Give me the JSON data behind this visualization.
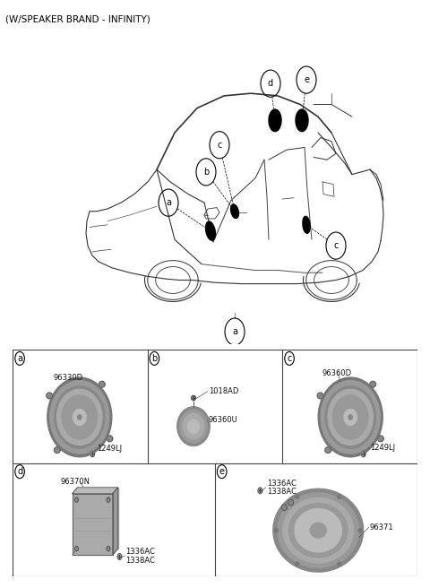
{
  "title": "(W/SPEAKER BRAND - INFINITY)",
  "title_fontsize": 7.5,
  "bg_color": "#ffffff",
  "label_fontsize": 6.0,
  "grid_color": "#444444",
  "line_color": "#333333",
  "speaker_dark": "#888888",
  "speaker_mid": "#aaaaaa",
  "speaker_light": "#cccccc",
  "speaker_rim": "#666666",
  "sections": {
    "a_parts": [
      "96330D",
      "1249LJ"
    ],
    "b_parts": [
      "1018AD",
      "96360U"
    ],
    "c_parts": [
      "96360D",
      "1249LJ"
    ],
    "d_parts": [
      "96370N",
      "1336AC",
      "1338AC"
    ],
    "e_parts": [
      "1336AC",
      "1338AC",
      "96371"
    ]
  }
}
